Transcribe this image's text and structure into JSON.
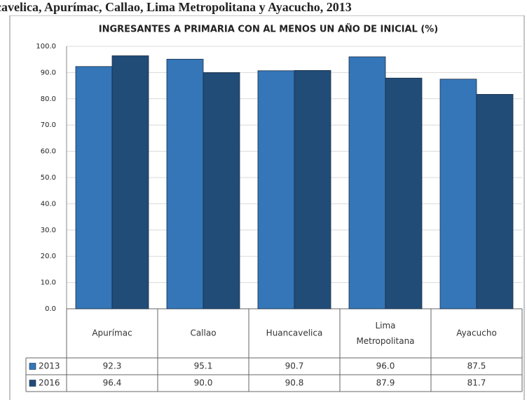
{
  "chart_data": {
    "type": "bar",
    "heading": "cavelica, Apurímac, Callao, Lima Metropolitana y Ayacucho, 2013",
    "title": "INGRESANTES A PRIMARIA CON AL MENOS UN AÑO DE INICIAL (%)",
    "categories": [
      "Apurímac",
      "Callao",
      "Huancavelica",
      "Lima Metropolitana",
      "Ayacucho"
    ],
    "series": [
      {
        "name": "2013",
        "color": "#3476b8",
        "values": [
          92.3,
          95.1,
          90.7,
          96.0,
          87.5
        ],
        "value_labels": [
          "92.3",
          "95.1",
          "90.7",
          "96.0",
          "87.5"
        ]
      },
      {
        "name": "2016",
        "color": "#214c78",
        "values": [
          96.4,
          90.0,
          90.8,
          87.9,
          81.7
        ],
        "value_labels": [
          "96.4",
          "90.0",
          "90.8",
          "87.9",
          "81.7"
        ]
      }
    ],
    "ylim": [
      0,
      100
    ],
    "yticks": [
      {
        "value": 0,
        "label": "0.0"
      },
      {
        "value": 10,
        "label": "10.0"
      },
      {
        "value": 20,
        "label": "20.0"
      },
      {
        "value": 30,
        "label": "30.0"
      },
      {
        "value": 40,
        "label": "40.0"
      },
      {
        "value": 50,
        "label": "50.0"
      },
      {
        "value": 60,
        "label": "60.0"
      },
      {
        "value": 70,
        "label": "70.0"
      },
      {
        "value": 80,
        "label": "80.0"
      },
      {
        "value": 90,
        "label": "90.0"
      },
      {
        "value": 100,
        "label": "100.0"
      }
    ],
    "grid": true
  }
}
